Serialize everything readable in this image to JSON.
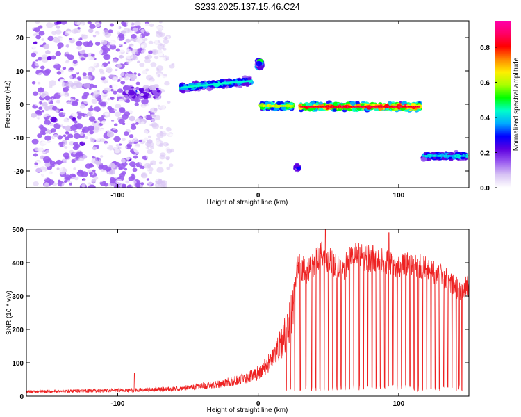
{
  "title": "S233.2025.137.15.46.C24",
  "colors": {
    "snr_line": "#ee2222",
    "frame": "#000000"
  },
  "colormap": [
    "#ffffff",
    "#d8c4f4",
    "#9b5cf0",
    "#5e00e0",
    "#0000ff",
    "#00aaff",
    "#00ffcc",
    "#00ff00",
    "#aaff00",
    "#ffee00",
    "#ff8800",
    "#ff0000",
    "#ff0066",
    "#ff00aa"
  ],
  "chart_data": [
    {
      "type": "heatmap",
      "name": "spectrogram",
      "xlabel": "Height of straight line (km)",
      "ylabel": "Frequency (Hz)",
      "xlim": [
        -165,
        150
      ],
      "ylim": [
        -25,
        25
      ],
      "xticks": [
        -100,
        0,
        100
      ],
      "xtick_labels": [
        "-100",
        "0",
        "100"
      ],
      "yticks": [
        -20,
        -10,
        0,
        10,
        20
      ],
      "ytick_labels": [
        "-20",
        "-10",
        "0",
        "10",
        "20"
      ],
      "colorbar": {
        "label": "Normalized spectral amplitude",
        "range": [
          0,
          0.95
        ],
        "ticks": [
          0.0,
          0.2,
          0.4,
          0.6,
          0.8
        ],
        "tick_labels": [
          "0.0",
          "0.2",
          "0.4",
          "0.6",
          "0.8"
        ]
      },
      "features": [
        {
          "x": [
            -160,
            -60
          ],
          "freq": [
            -25,
            25
          ],
          "amplitude": 0.15
        },
        {
          "x": [
            -95,
            -70
          ],
          "freq": [
            2,
            5
          ],
          "amplitude": 0.2
        },
        {
          "x": [
            -55,
            -5
          ],
          "freq_start": 5,
          "freq_end": 7,
          "amplitude": 0.5
        },
        {
          "x": [
            0,
            2
          ],
          "freq": [
            11,
            13
          ],
          "amplitude": 0.4
        },
        {
          "x": [
            2,
            25
          ],
          "freq": -0.5,
          "amplitude": 0.7
        },
        {
          "x": [
            27,
            29
          ],
          "freq": -19,
          "amplitude": 0.3
        },
        {
          "x": [
            30,
            115
          ],
          "freq": -0.7,
          "amplitude": 0.95
        },
        {
          "x": [
            117,
            148
          ],
          "freq": -15.5,
          "amplitude": 0.45
        }
      ]
    },
    {
      "type": "line",
      "name": "snr",
      "xlabel": "Height of straight line (km)",
      "ylabel": "SNR (10 * v/v)",
      "xlim": [
        -165,
        150
      ],
      "ylim": [
        0,
        500
      ],
      "xticks": [
        -100,
        0,
        100
      ],
      "xtick_labels": [
        "-100",
        "0",
        "100"
      ],
      "yticks": [
        0,
        100,
        200,
        300,
        400,
        500
      ],
      "ytick_labels": [
        "0",
        "100",
        "200",
        "300",
        "400",
        "500"
      ],
      "envelope": {
        "x": [
          -165,
          -100,
          -60,
          -30,
          -10,
          0,
          10,
          20,
          25,
          28,
          35,
          45,
          55,
          60,
          65,
          70,
          80,
          90,
          100,
          110,
          120,
          130,
          140,
          145,
          148,
          150
        ],
        "y": [
          15,
          20,
          25,
          40,
          60,
          80,
          120,
          220,
          300,
          400,
          380,
          430,
          400,
          380,
          420,
          430,
          420,
          410,
          400,
          410,
          390,
          370,
          340,
          310,
          340,
          330
        ]
      },
      "dropouts": [
        20,
        23,
        26,
        30,
        34,
        38,
        41,
        44,
        47,
        50,
        53,
        56,
        59,
        62,
        65,
        68,
        72,
        75,
        78,
        81,
        84,
        87,
        90,
        93,
        96,
        99,
        102,
        105,
        108,
        111,
        114,
        117,
        120,
        123,
        126,
        129,
        132,
        135,
        138,
        141,
        143,
        145
      ],
      "peaks": [
        {
          "x": 48,
          "y": 500
        },
        {
          "x": 93,
          "y": 490
        },
        {
          "x": -88,
          "y": 70
        }
      ]
    }
  ]
}
